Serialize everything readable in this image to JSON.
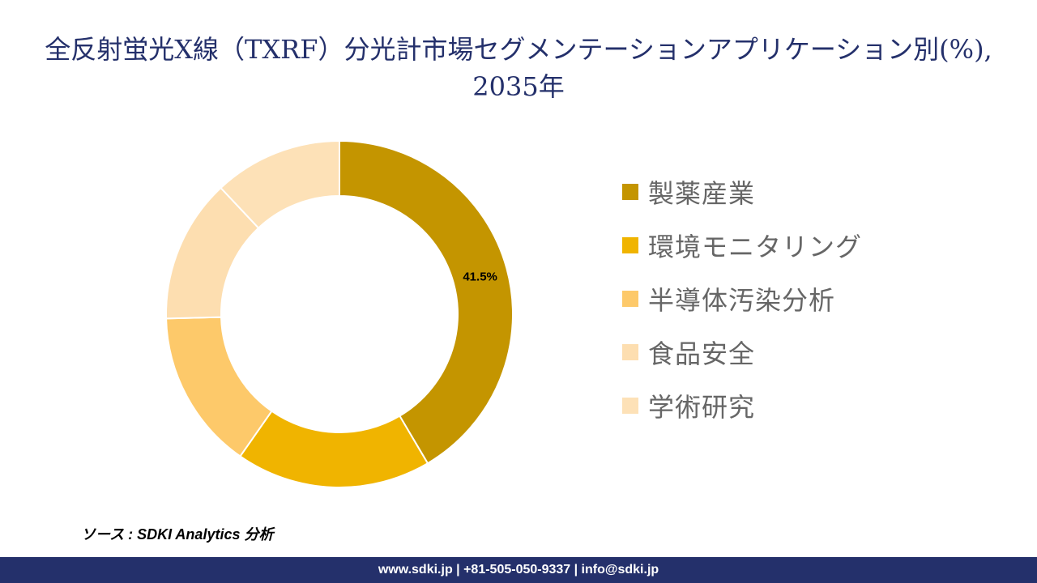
{
  "title": "全反射蛍光X線（TXRF）分光計市場セグメンテーションアプリケーション別(%), 2035年",
  "chart_data": {
    "type": "pie",
    "subtype": "donut",
    "title": "全反射蛍光X線（TXRF）分光計市場セグメンテーションアプリケーション別(%), 2035年",
    "categories": [
      "製薬産業",
      "環境モニタリング",
      "半導体汚染分析",
      "食品安全",
      "学術研究"
    ],
    "values": [
      41.5,
      18.2,
      14.9,
      13.4,
      12.0
    ],
    "colors": [
      "#c49500",
      "#f0b400",
      "#fdc96a",
      "#fddeb0",
      "#fde1b7"
    ],
    "data_labels": [
      "41.5%",
      "",
      "",
      "",
      ""
    ],
    "legend_position": "right"
  },
  "source": "ソース : SDKI Analytics 分析",
  "footer": "www.sdki.jp | +81-505-050-9337 | info@sdki.jp"
}
